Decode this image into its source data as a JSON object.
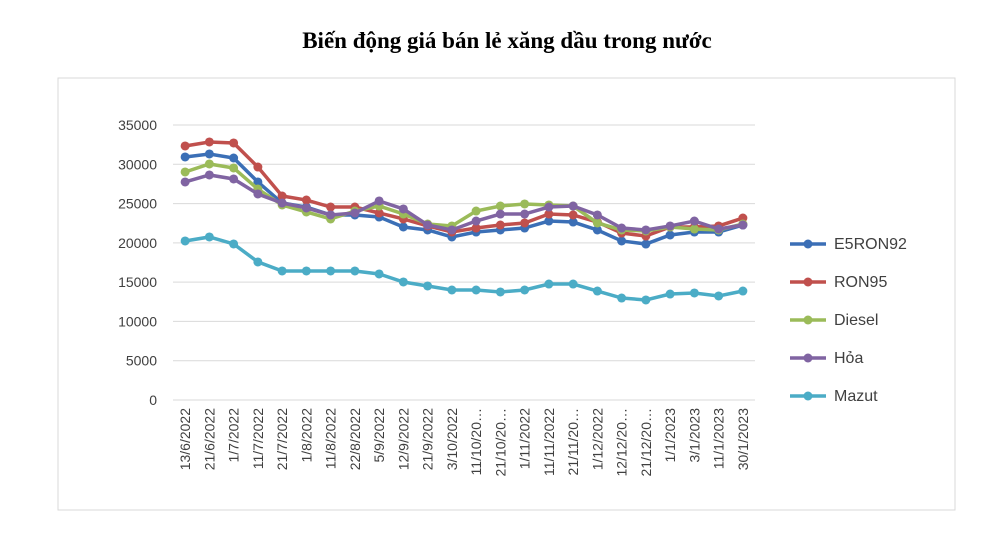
{
  "chart_data": {
    "type": "line",
    "title": "Biến động giá bán lẻ xăng dầu trong nước",
    "categories": [
      "13/6/2022",
      "21/6/2022",
      "1/7/2022",
      "11/7/2022",
      "21/7/2022",
      "1/8/2022",
      "11/8/2022",
      "22/8/2022",
      "5/9/2022",
      "12/9/2022",
      "21/9/2022",
      "3/10/2022",
      "11/10/20…",
      "21/10/20…",
      "1/11/2022",
      "11/11/2022",
      "21/11/20…",
      "1/12/2022",
      "12/12/20…",
      "21/12/20…",
      "1/1/2023",
      "3/1/2023",
      "11/1/2023",
      "30/1/2023"
    ],
    "series": [
      {
        "name": "E5RON92",
        "color": "#3b6fb6",
        "values": [
          30930,
          31310,
          30800,
          27750,
          25070,
          24560,
          23550,
          23550,
          23290,
          22020,
          21640,
          20750,
          21380,
          21640,
          21890,
          22780,
          22650,
          21640,
          20240,
          19850,
          21000,
          21380,
          21380,
          22270
        ]
      },
      {
        "name": "RON95",
        "color": "#c0504d",
        "values": [
          32330,
          32840,
          32710,
          29650,
          25960,
          25450,
          24560,
          24560,
          23800,
          23040,
          22150,
          21380,
          21890,
          22270,
          22530,
          23670,
          23550,
          22650,
          21250,
          20870,
          22020,
          22020,
          22150,
          23160
        ]
      },
      {
        "name": "Diesel",
        "color": "#9bbb59",
        "values": [
          29020,
          30040,
          29530,
          26850,
          24820,
          23930,
          23040,
          24050,
          24690,
          23670,
          22400,
          22150,
          24050,
          24690,
          24950,
          24820,
          24690,
          22530,
          21640,
          21510,
          22020,
          21760,
          21640,
          22400
        ]
      },
      {
        "name": "Hỏa",
        "color": "#8064a2",
        "values": [
          27750,
          28640,
          28130,
          26220,
          25070,
          24440,
          23550,
          23800,
          25330,
          24310,
          22270,
          21640,
          22780,
          23670,
          23670,
          24560,
          24690,
          23550,
          21890,
          21640,
          22150,
          22780,
          21760,
          22270
        ]
      },
      {
        "name": "Mazut",
        "color": "#4bacc6",
        "values": [
          20240,
          20750,
          19860,
          17570,
          16420,
          16420,
          16420,
          16420,
          16040,
          15020,
          14510,
          14000,
          14000,
          13750,
          14000,
          14760,
          14760,
          13870,
          12980,
          12730,
          13490,
          13620,
          13240,
          13870
        ]
      }
    ],
    "ylim": [
      0,
      35000
    ],
    "yticks": [
      0,
      5000,
      10000,
      15000,
      20000,
      25000,
      30000,
      35000
    ],
    "grid": true,
    "legend": "right"
  }
}
